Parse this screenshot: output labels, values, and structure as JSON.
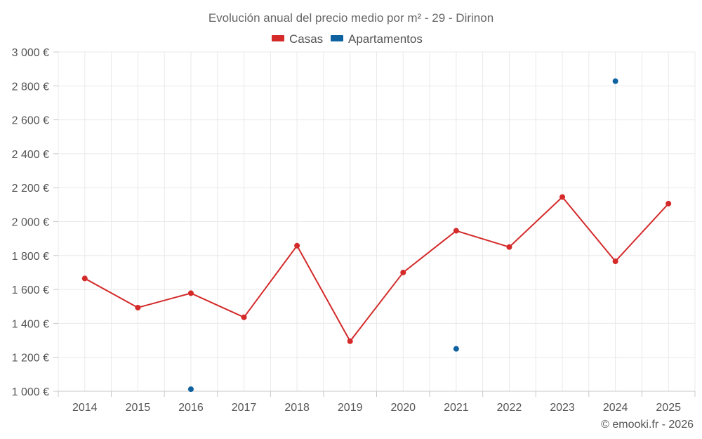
{
  "chart_data": {
    "type": "line",
    "title": "Evolución anual del precio medio por m² - 29 - Dirinon",
    "categories": [
      "2014",
      "2015",
      "2016",
      "2017",
      "2018",
      "2019",
      "2020",
      "2021",
      "2022",
      "2023",
      "2024",
      "2025"
    ],
    "series": [
      {
        "name": "Casas",
        "color": "#d42a2a",
        "values": [
          1665,
          1493,
          1578,
          1436,
          1858,
          1295,
          1700,
          1946,
          1850,
          2145,
          1766,
          2106
        ]
      },
      {
        "name": "Apartamentos",
        "color": "#0f62a0",
        "values": [
          null,
          null,
          1012,
          null,
          null,
          null,
          null,
          1250,
          null,
          null,
          2828,
          null
        ]
      }
    ],
    "ylim": [
      1000,
      3000
    ],
    "yticks": [
      1000,
      1200,
      1400,
      1600,
      1800,
      2000,
      2200,
      2400,
      2600,
      2800,
      3000
    ],
    "ytick_labels": [
      "1 000 €",
      "1 200 €",
      "1 400 €",
      "1 600 €",
      "1 800 €",
      "2 000 €",
      "2 200 €",
      "2 400 €",
      "2 600 €",
      "2 800 €",
      "3 000 €"
    ],
    "xlabel": "",
    "ylabel": "",
    "grid": true,
    "legend_position": "top-center"
  },
  "credit": "© emooki.fr - 2026"
}
